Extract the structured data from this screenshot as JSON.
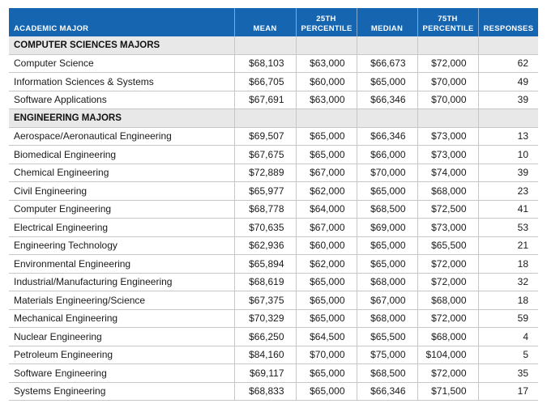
{
  "headers": {
    "major": "ACADEMIC MAJOR",
    "mean": "MEAN",
    "p25_line1": "25TH",
    "p25_line2": "PERCENTILE",
    "median": "MEDIAN",
    "p75_line1": "75TH",
    "p75_line2": "PERCENTILE",
    "responses": "RESPONSES"
  },
  "sections": [
    {
      "title": "COMPUTER SCIENCES MAJORS",
      "rows": [
        {
          "major": "Computer Science",
          "mean": "$68,103",
          "p25": "$63,000",
          "median": "$66,673",
          "p75": "$72,000",
          "responses": "62"
        },
        {
          "major": "Information Sciences & Systems",
          "mean": "$66,705",
          "p25": "$60,000",
          "median": "$65,000",
          "p75": "$70,000",
          "responses": "49"
        },
        {
          "major": "Software Applications",
          "mean": "$67,691",
          "p25": "$63,000",
          "median": "$66,346",
          "p75": "$70,000",
          "responses": "39"
        }
      ]
    },
    {
      "title": "ENGINEERING MAJORS",
      "rows": [
        {
          "major": "Aerospace/Aeronautical Engineering",
          "mean": "$69,507",
          "p25": "$65,000",
          "median": "$66,346",
          "p75": "$73,000",
          "responses": "13"
        },
        {
          "major": "Biomedical Engineering",
          "mean": "$67,675",
          "p25": "$65,000",
          "median": "$66,000",
          "p75": "$73,000",
          "responses": "10"
        },
        {
          "major": "Chemical Engineering",
          "mean": "$72,889",
          "p25": "$67,000",
          "median": "$70,000",
          "p75": "$74,000",
          "responses": "39"
        },
        {
          "major": "Civil Engineering",
          "mean": "$65,977",
          "p25": "$62,000",
          "median": "$65,000",
          "p75": "$68,000",
          "responses": "23"
        },
        {
          "major": "Computer Engineering",
          "mean": "$68,778",
          "p25": "$64,000",
          "median": "$68,500",
          "p75": "$72,500",
          "responses": "41"
        },
        {
          "major": "Electrical Engineering",
          "mean": "$70,635",
          "p25": "$67,000",
          "median": "$69,000",
          "p75": "$73,000",
          "responses": "53"
        },
        {
          "major": "Engineering Technology",
          "mean": "$62,936",
          "p25": "$60,000",
          "median": "$65,000",
          "p75": "$65,500",
          "responses": "21"
        },
        {
          "major": "Environmental Engineering",
          "mean": "$65,894",
          "p25": "$62,000",
          "median": "$65,000",
          "p75": "$72,000",
          "responses": "18"
        },
        {
          "major": "Industrial/Manufacturing Engineering",
          "mean": "$68,619",
          "p25": "$65,000",
          "median": "$68,000",
          "p75": "$72,000",
          "responses": "32"
        },
        {
          "major": "Materials Engineering/Science",
          "mean": "$67,375",
          "p25": "$65,000",
          "median": "$67,000",
          "p75": "$68,000",
          "responses": "18"
        },
        {
          "major": "Mechanical Engineering",
          "mean": "$70,329",
          "p25": "$65,000",
          "median": "$68,000",
          "p75": "$72,000",
          "responses": "59"
        },
        {
          "major": "Nuclear Engineering",
          "mean": "$66,250",
          "p25": "$64,500",
          "median": "$65,500",
          "p75": "$68,000",
          "responses": "4"
        },
        {
          "major": "Petroleum Engineering",
          "mean": "$84,160",
          "p25": "$70,000",
          "median": "$75,000",
          "p75": "$104,000",
          "responses": "5"
        },
        {
          "major": "Software Engineering",
          "mean": "$69,117",
          "p25": "$65,000",
          "median": "$68,500",
          "p75": "$72,000",
          "responses": "35"
        },
        {
          "major": "Systems Engineering",
          "mean": "$68,833",
          "p25": "$65,000",
          "median": "$66,346",
          "p75": "$71,500",
          "responses": "17"
        }
      ]
    }
  ],
  "colors": {
    "header_bg": "#1565b0",
    "section_bg": "#e8e8e8",
    "rule": "#c7c7c7"
  }
}
